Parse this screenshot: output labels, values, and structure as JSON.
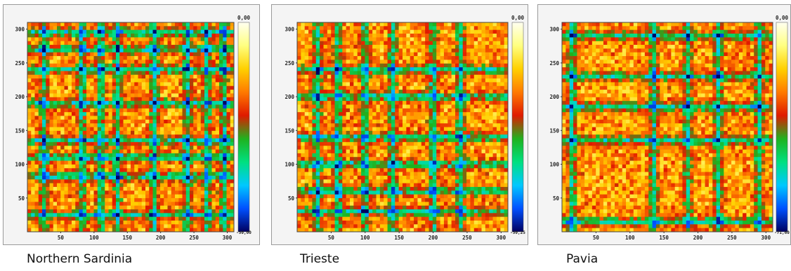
{
  "chart_data": [
    {
      "type": "heatmap",
      "caption": "Northern Sardinia",
      "xticks": [
        "50",
        "100",
        "150",
        "200",
        "250",
        "300"
      ],
      "yticks": [
        "300",
        "250",
        "200",
        "150",
        "100",
        "50"
      ],
      "xlim": [
        0,
        310
      ],
      "ylim": [
        0,
        310
      ],
      "colorbar": {
        "max_label": "0,00",
        "min_label": "-50,00"
      },
      "line_positions": [
        25,
        82,
        110,
        135,
        190,
        240,
        270,
        295
      ],
      "grid": false
    },
    {
      "type": "heatmap",
      "caption": "Trieste",
      "xticks": [
        "50",
        "100",
        "150",
        "200",
        "250",
        "300"
      ],
      "yticks": [
        "300",
        "250",
        "200",
        "150",
        "100",
        "50"
      ],
      "xlim": [
        0,
        310
      ],
      "ylim": [
        0,
        310
      ],
      "colorbar": {
        "max_label": "0,00",
        "min_label": "-50,25"
      },
      "line_positions": [
        30,
        60,
        100,
        140,
        200,
        240
      ],
      "grid": false
    },
    {
      "type": "heatmap",
      "caption": "Pavia",
      "xticks": [
        "50",
        "100",
        "150",
        "200",
        "250",
        "300"
      ],
      "yticks": [
        "300",
        "250",
        "200",
        "150",
        "100",
        "50"
      ],
      "xlim": [
        0,
        310
      ],
      "ylim": [
        0,
        310
      ],
      "colorbar": {
        "max_label": "0,00",
        "min_label": "-71,60"
      },
      "line_positions": [
        15,
        135,
        185,
        230,
        290
      ],
      "grid": false
    }
  ],
  "colors": {
    "scale": [
      "#fffff0",
      "#ffff80",
      "#ffd000",
      "#ff7a00",
      "#e01a00",
      "#1fb21f",
      "#00e080",
      "#00c8ff",
      "#0050ff",
      "#000060"
    ]
  }
}
